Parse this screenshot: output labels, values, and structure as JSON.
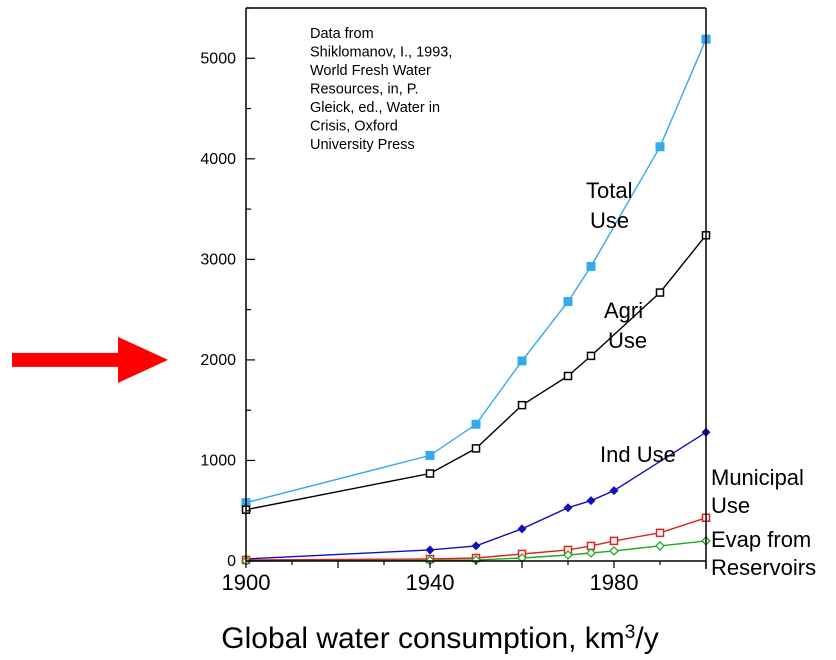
{
  "chart_data": {
    "type": "line",
    "caption": "Global water consumption, km",
    "caption_sup": "3",
    "caption_unit": "/y",
    "source_note": [
      "Data from",
      "Shiklomanov, I., 1993,",
      "World Fresh Water",
      "Resources, in, P.",
      "Gleick, ed., Water in",
      "Crisis, Oxford",
      "University Press"
    ],
    "x_ticks": [
      "1900",
      "1940",
      "1980"
    ],
    "x_tick_values": [
      1900,
      1940,
      1980
    ],
    "y_ticks": [
      "0",
      "1000",
      "2000",
      "3000",
      "4000",
      "5000"
    ],
    "y_tick_values": [
      0,
      1000,
      2000,
      3000,
      4000,
      5000
    ],
    "xlim": [
      1900,
      2000
    ],
    "ylim": [
      0,
      5500
    ],
    "legend": "none",
    "grid": false,
    "annotation_arrow_value": 2000,
    "arrow_color": "#ff0000",
    "series": [
      {
        "name": "Total Use",
        "label_lines": [
          "Total",
          "Use"
        ],
        "color": "#33aaee",
        "marker": "filled-square",
        "x": [
          1900,
          1940,
          1950,
          1960,
          1970,
          1975,
          1990,
          2000
        ],
        "y": [
          580,
          1050,
          1360,
          1990,
          2580,
          2930,
          4120,
          5190
        ]
      },
      {
        "name": "Agri Use",
        "label_lines": [
          "Agri",
          "Use"
        ],
        "color": "#000000",
        "marker": "open-square",
        "x": [
          1900,
          1940,
          1950,
          1960,
          1970,
          1975,
          1990,
          2000
        ],
        "y": [
          510,
          870,
          1120,
          1550,
          1840,
          2040,
          2670,
          3240
        ]
      },
      {
        "name": "Ind Use",
        "label_lines": [
          "Ind Use"
        ],
        "color": "#1010bb",
        "marker": "filled-diamond",
        "x": [
          1900,
          1940,
          1950,
          1960,
          1970,
          1975,
          1980,
          2000
        ],
        "y": [
          20,
          110,
          150,
          320,
          530,
          600,
          700,
          1280
        ]
      },
      {
        "name": "Municipal Use",
        "label_lines": [
          "Municipal",
          "Use"
        ],
        "color": "#dd2222",
        "marker": "open-square",
        "x": [
          1900,
          1940,
          1950,
          1960,
          1970,
          1975,
          1980,
          1990,
          2000
        ],
        "y": [
          10,
          20,
          30,
          70,
          110,
          150,
          200,
          280,
          430
        ]
      },
      {
        "name": "Evap from Reservoirs",
        "label_lines": [
          "Evap from",
          "Reservoirs"
        ],
        "color": "#22aa22",
        "marker": "open-diamond",
        "x": [
          1900,
          1940,
          1950,
          1960,
          1970,
          1975,
          1980,
          1990,
          2000
        ],
        "y": [
          0,
          5,
          10,
          30,
          60,
          80,
          100,
          150,
          200
        ]
      }
    ]
  }
}
